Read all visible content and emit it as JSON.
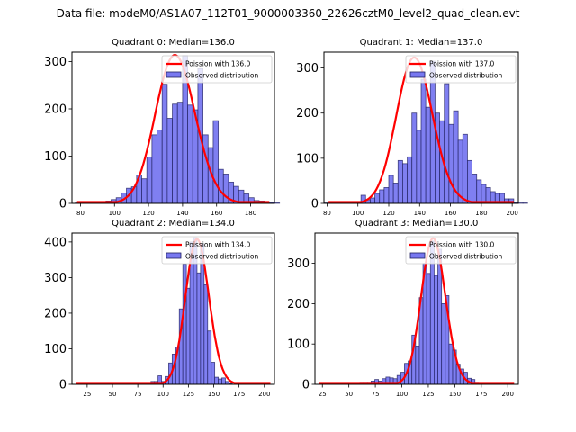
{
  "suptitle": "Data file: modeM0/AS1A07_112T01_9000003360_22626cztM0_level2_quad_clean.evt",
  "colors": {
    "bar_fill": "#7878f0",
    "bar_edge": "#202060",
    "poisson_line": "#ff0000"
  },
  "chart_data": [
    {
      "type": "bar",
      "title": "Quadrant 0: Median=136.0",
      "median": 136.0,
      "legend": [
        "Poission with 136.0",
        "Observed distribution"
      ],
      "legend_position": "top-right",
      "xlim": [
        75,
        194
      ],
      "ylim": [
        0,
        320
      ],
      "xticks": [
        80,
        100,
        120,
        140,
        160,
        180
      ],
      "yticks": [
        0,
        100,
        200,
        300
      ],
      "bin_width": 3,
      "bin_start": 77,
      "values": [
        1,
        1,
        2,
        1,
        2,
        3,
        5,
        8,
        12,
        22,
        32,
        35,
        60,
        52,
        98,
        145,
        155,
        252,
        180,
        210,
        214,
        312,
        208,
        198,
        285,
        145,
        118,
        175,
        72,
        62,
        45,
        36,
        28,
        20,
        12,
        6,
        5,
        3,
        2,
        1
      ],
      "poisson_mean": 136.0,
      "poisson_peak": 314
    },
    {
      "type": "bar",
      "title": "Quadrant 1: Median=137.0",
      "median": 137.0,
      "legend": [
        "Poission with 137.0",
        "Observed distribution"
      ],
      "legend_position": "top-right",
      "xlim": [
        78,
        204
      ],
      "ylim": [
        0,
        335
      ],
      "xticks": [
        80,
        100,
        120,
        140,
        160,
        180,
        200
      ],
      "yticks": [
        0,
        100,
        200,
        300
      ],
      "bin_width": 3,
      "bin_start": 78,
      "values": [
        1,
        0,
        1,
        1,
        2,
        1,
        2,
        1,
        18,
        8,
        12,
        22,
        30,
        35,
        62,
        45,
        95,
        88,
        103,
        200,
        162,
        275,
        213,
        315,
        200,
        183,
        265,
        175,
        205,
        140,
        153,
        95,
        65,
        52,
        42,
        35,
        26,
        22,
        22,
        10,
        10,
        2,
        1,
        1
      ],
      "poisson_mean": 137.0,
      "poisson_peak": 323
    },
    {
      "type": "bar",
      "title": "Quadrant 2: Median=134.0",
      "median": 134.0,
      "legend": [
        "Poission with 134.0",
        "Observed distribution"
      ],
      "legend_position": "top-right",
      "xlim": [
        10,
        210
      ],
      "ylim": [
        0,
        425
      ],
      "xticks": [
        25,
        50,
        75,
        100,
        125,
        150,
        175,
        200
      ],
      "yticks": [
        0,
        100,
        200,
        300,
        400
      ],
      "bin_width": 3.5,
      "bin_start": 88,
      "values": [
        8,
        8,
        24,
        8,
        22,
        60,
        85,
        105,
        212,
        338,
        270,
        400,
        412,
        313,
        395,
        280,
        150,
        62,
        20,
        15,
        18,
        8,
        2
      ],
      "poisson_mean": 134.0,
      "poisson_peak": 408
    },
    {
      "type": "bar",
      "title": "Quadrant 3: Median=130.0",
      "median": 130.0,
      "legend": [
        "Poission with 130.0",
        "Observed distribution"
      ],
      "legend_position": "top-right",
      "xlim": [
        18,
        210
      ],
      "ylim": [
        0,
        375
      ],
      "xticks": [
        25,
        50,
        75,
        100,
        125,
        150,
        175,
        200
      ],
      "yticks": [
        0,
        100,
        200,
        300
      ],
      "bin_width": 3.5,
      "bin_start": 36,
      "values": [
        3,
        3,
        3,
        1,
        1,
        1,
        1,
        5,
        5,
        5,
        8,
        12,
        8,
        14,
        18,
        16,
        14,
        22,
        30,
        52,
        58,
        122,
        95,
        215,
        300,
        275,
        355,
        270,
        335,
        200,
        220,
        100,
        85,
        50,
        38,
        30,
        15,
        12,
        5,
        2,
        1
      ],
      "poisson_mean": 130.0,
      "poisson_peak": 362
    }
  ]
}
